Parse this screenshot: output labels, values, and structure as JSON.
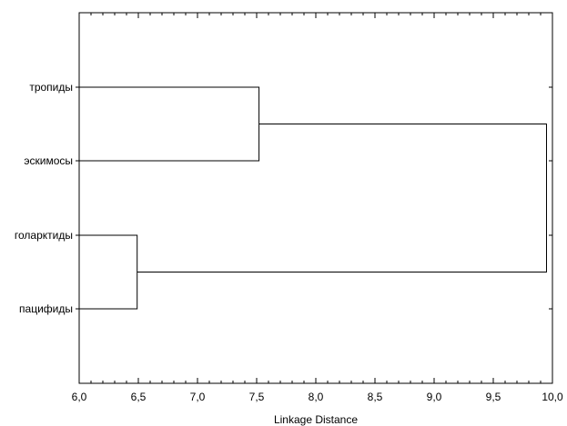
{
  "chart_data": {
    "type": "dendrogram",
    "title": "",
    "xlabel": "Linkage Distance",
    "ylabel": "",
    "xlim": [
      6.0,
      10.0
    ],
    "x_ticks": [
      "6,0",
      "6,5",
      "7,0",
      "7,5",
      "8,0",
      "8,5",
      "9,0",
      "9,5",
      "10,0"
    ],
    "leaves": [
      "тропиды",
      "эскимосы",
      "голарктиды",
      "пацифиды"
    ],
    "merges": [
      {
        "left": "голарктиды",
        "right": "пацифиды",
        "distance": 6.49
      },
      {
        "left": "тропиды",
        "right": "эскимосы",
        "distance": 7.52
      },
      {
        "left": "тропиды+эскимосы",
        "right": "голарктиды+пацифиды",
        "distance": 9.95
      }
    ],
    "grid": false,
    "colors": {
      "lines": "#000000",
      "background": "#ffffff"
    }
  }
}
